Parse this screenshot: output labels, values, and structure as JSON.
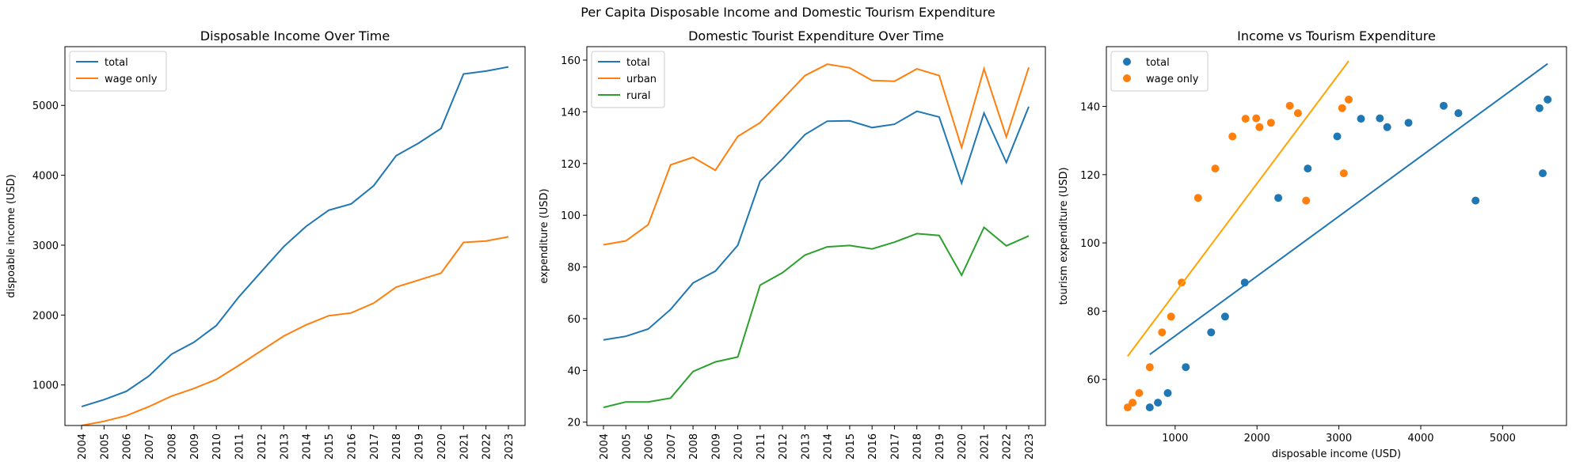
{
  "suptitle": "Per Capita Disposable Income and Domestic Tourism Expenditure",
  "colors": {
    "c0": "#1f77b4",
    "c1": "#ff7f0e",
    "c2": "#2ca02c",
    "fit_wage": "#ffa500"
  },
  "chart_data": [
    {
      "type": "line",
      "title": "Disposable Income Over Time",
      "xlabel": "",
      "ylabel": "dispoable income (USD)",
      "categories": [
        "2004",
        "2005",
        "2006",
        "2007",
        "2008",
        "2009",
        "2010",
        "2011",
        "2012",
        "2013",
        "2014",
        "2015",
        "2016",
        "2017",
        "2018",
        "2019",
        "2020",
        "2021",
        "2022",
        "2023"
      ],
      "yticks": [
        1000,
        2000,
        3000,
        4000,
        5000
      ],
      "ylim": [
        420,
        5840
      ],
      "legend": "top-left",
      "series": [
        {
          "name": "total",
          "color": "#1f77b4",
          "values": [
            690,
            790,
            910,
            1130,
            1440,
            1610,
            1850,
            2260,
            2620,
            2980,
            3270,
            3500,
            3590,
            3850,
            4280,
            4460,
            4670,
            5450,
            5490,
            5550
          ]
        },
        {
          "name": "wage only",
          "color": "#ff7f0e",
          "values": [
            420,
            480,
            560,
            690,
            840,
            950,
            1080,
            1280,
            1490,
            1700,
            1860,
            1990,
            2030,
            2170,
            2400,
            2500,
            2600,
            3040,
            3060,
            3120
          ]
        }
      ]
    },
    {
      "type": "line",
      "title": "Domestic Tourist Expenditure Over Time",
      "xlabel": "",
      "ylabel": "expenditure (USD)",
      "categories": [
        "2004",
        "2005",
        "2006",
        "2007",
        "2008",
        "2009",
        "2010",
        "2011",
        "2012",
        "2013",
        "2014",
        "2015",
        "2016",
        "2017",
        "2018",
        "2019",
        "2020",
        "2021",
        "2022",
        "2023"
      ],
      "yticks": [
        20,
        40,
        60,
        80,
        100,
        120,
        140,
        160
      ],
      "ylim": [
        18.7,
        165.2
      ],
      "legend": "top-left",
      "series": [
        {
          "name": "total",
          "color": "#1f77b4",
          "values": [
            51.8,
            53.2,
            56.0,
            63.6,
            73.8,
            78.4,
            88.4,
            113.2,
            121.8,
            131.2,
            136.4,
            136.5,
            133.9,
            135.2,
            140.2,
            138.0,
            112.4,
            139.5,
            120.4,
            142.0
          ]
        },
        {
          "name": "urban",
          "color": "#ff7f0e",
          "values": [
            88.6,
            90.1,
            96.4,
            119.5,
            122.4,
            117.4,
            130.5,
            135.8,
            144.9,
            154.0,
            158.4,
            157.0,
            152.1,
            151.8,
            156.6,
            154.0,
            126.2,
            156.6,
            130.3,
            157.2
          ]
        },
        {
          "name": "rural",
          "color": "#2ca02c",
          "values": [
            25.7,
            27.8,
            27.8,
            29.3,
            39.6,
            43.3,
            45.2,
            73.0,
            77.8,
            84.6,
            87.8,
            88.3,
            87.0,
            89.6,
            92.9,
            92.2,
            76.8,
            95.3,
            88.2,
            92.0
          ]
        }
      ]
    },
    {
      "type": "scatter",
      "title": "Income vs Tourism Expenditure",
      "xlabel": "disposable income  (USD)",
      "ylabel": "tourism expenditure (USD)",
      "xticks": [
        1000,
        2000,
        3000,
        4000,
        5000
      ],
      "yticks": [
        60,
        80,
        100,
        120,
        140
      ],
      "xlim": [
        160,
        5780
      ],
      "ylim": [
        46.5,
        157.5
      ],
      "legend": "top-left",
      "series": [
        {
          "name": "total",
          "color": "#1f77b4",
          "x": [
            690,
            790,
            910,
            1130,
            1440,
            1610,
            1850,
            2260,
            2620,
            2980,
            3270,
            3500,
            3590,
            3850,
            4280,
            4460,
            4670,
            5450,
            5490,
            5550
          ],
          "y": [
            51.8,
            53.2,
            56.0,
            63.6,
            73.8,
            78.4,
            88.4,
            113.2,
            121.8,
            131.2,
            136.4,
            136.5,
            133.9,
            135.2,
            140.2,
            138.0,
            112.4,
            139.5,
            120.4,
            142.0
          ],
          "fit": {
            "x0": 690,
            "y0": 67.3,
            "x1": 5550,
            "y1": 152.5,
            "color": "#1f77b4"
          }
        },
        {
          "name": "wage only",
          "color": "#ff7f0e",
          "x": [
            420,
            480,
            560,
            690,
            840,
            950,
            1080,
            1280,
            1490,
            1700,
            1860,
            1990,
            2030,
            2170,
            2400,
            2500,
            2600,
            3040,
            3060,
            3120
          ],
          "y": [
            51.8,
            53.2,
            56.0,
            63.6,
            73.8,
            78.4,
            88.4,
            113.2,
            121.8,
            131.2,
            136.4,
            136.5,
            133.9,
            135.2,
            140.2,
            138.0,
            112.4,
            139.5,
            120.4,
            142.0
          ],
          "fit": {
            "x0": 420,
            "y0": 66.8,
            "x1": 3120,
            "y1": 153.3,
            "color": "#ffa500"
          }
        }
      ]
    }
  ]
}
